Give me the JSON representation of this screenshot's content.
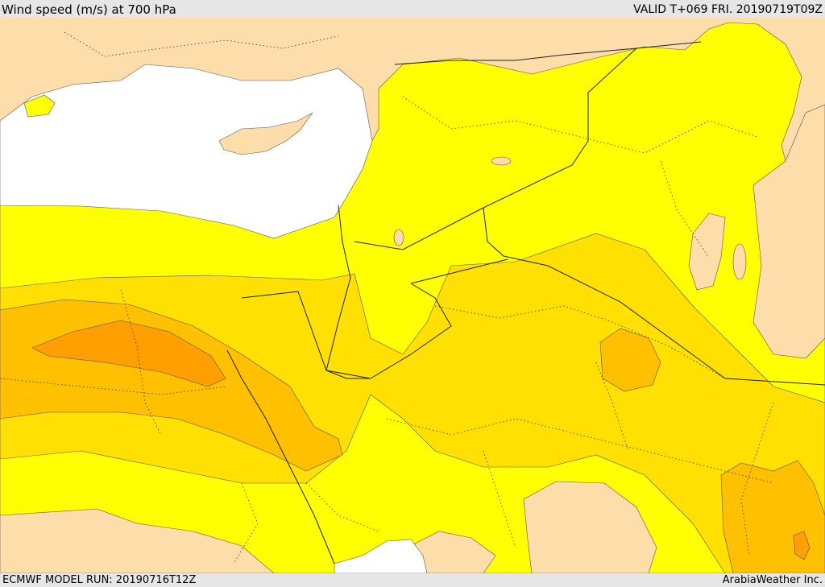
{
  "header": {
    "title": "Wind speed (m/s) at 700 hPa",
    "valid": "VALID T+069 FRI. 20190719T09Z"
  },
  "footer": {
    "model_run": "ECMWF MODEL RUN: 20190716T12Z",
    "credit": "ArabiaWeather Inc."
  },
  "colors": {
    "sea": "#ffffff",
    "land_calm": "#fddeaa",
    "band_light": "#ffff00",
    "band_medium": "#ffe000",
    "band_strong": "#ffc000",
    "band_max": "#ff9f00",
    "band_peak": "#ff8a00",
    "borders": "#222222"
  }
}
